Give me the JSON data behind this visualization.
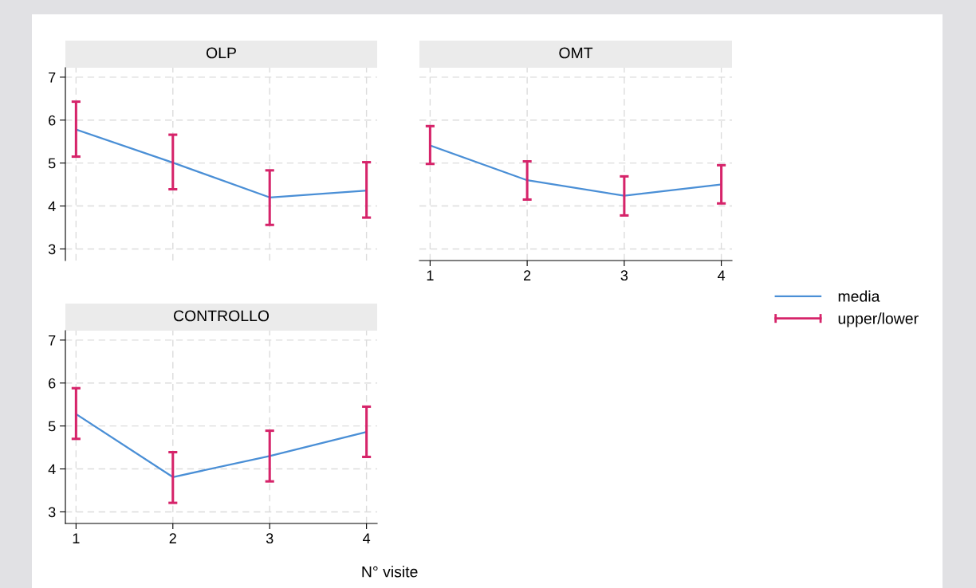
{
  "chart_data": [
    {
      "type": "line",
      "title": "OLP",
      "x": [
        1,
        2,
        3,
        4
      ],
      "xlim": [
        0.89,
        4.11
      ],
      "xticks": [
        1,
        2,
        3,
        4
      ],
      "ylim": [
        2.73,
        7.22
      ],
      "yticks": [
        3,
        4,
        5,
        6,
        7
      ],
      "grid": true,
      "tick_labels": "y",
      "series": [
        {
          "color": "#4a8fd6",
          "values": [
            5.78,
            5.01,
            4.2,
            4.36
          ],
          "errors": [
            [
              5.15,
              6.43
            ],
            [
              4.39,
              5.66
            ],
            [
              3.56,
              4.83
            ],
            [
              3.73,
              5.02
            ]
          ]
        },
        {
          "type": "scatter",
          "marker": "none",
          "color": "#d6246a",
          "values": [
            null,
            null,
            null,
            null
          ]
        }
      ]
    },
    {
      "type": "line",
      "title": "OMT",
      "x": [
        1,
        2,
        3,
        4
      ],
      "xlim": [
        0.89,
        4.11
      ],
      "xticks": [
        1,
        2,
        3,
        4
      ],
      "ylim": [
        2.73,
        7.22
      ],
      "yticks": [
        3,
        4,
        5,
        6,
        7
      ],
      "grid": true,
      "tick_labels": "x",
      "legend": "right",
      "series": [
        {
          "name": "media",
          "color": "#4a8fd6",
          "values": [
            5.41,
            4.6,
            4.24,
            4.5
          ],
          "errors": [
            [
              4.98,
              5.86
            ],
            [
              4.15,
              5.04
            ],
            [
              3.78,
              4.69
            ],
            [
              4.06,
              4.95
            ]
          ]
        },
        {
          "name": "upper/lower",
          "type": "scatter",
          "marker": "none",
          "color": "#d6246a",
          "values": [
            null,
            null,
            null,
            null
          ]
        }
      ]
    },
    {
      "type": "line",
      "title": "CONTROLLO",
      "xlabel": "N° visite",
      "x": [
        1,
        2,
        3,
        4
      ],
      "xlim": [
        0.89,
        4.11
      ],
      "xticks": [
        1,
        2,
        3,
        4
      ],
      "ylim": [
        2.73,
        7.22
      ],
      "yticks": [
        3,
        4,
        5,
        6,
        7
      ],
      "grid": true,
      "series": [
        {
          "color": "#4a8fd6",
          "values": [
            5.28,
            3.81,
            4.3,
            4.86
          ],
          "errors": [
            [
              4.7,
              5.88
            ],
            [
              3.21,
              4.39
            ],
            [
              3.71,
              4.89
            ],
            [
              4.28,
              5.45
            ]
          ]
        },
        {
          "type": "scatter",
          "marker": "none",
          "color": "#d6246a",
          "values": [
            null,
            null,
            null,
            null
          ]
        }
      ]
    }
  ]
}
